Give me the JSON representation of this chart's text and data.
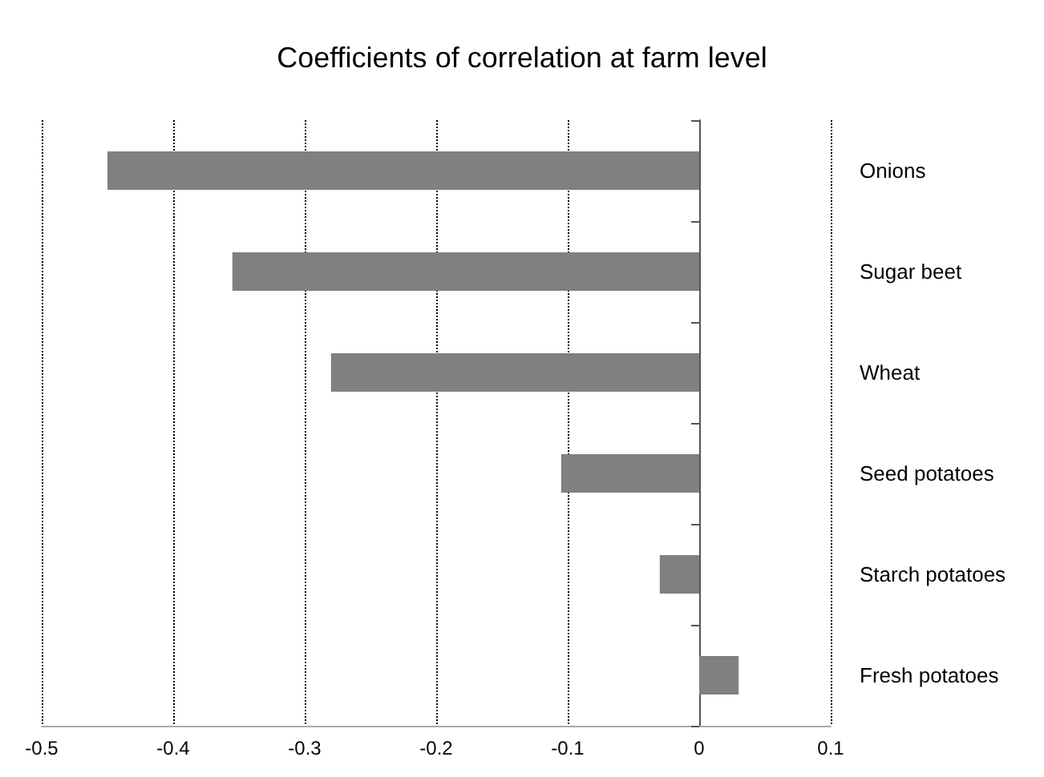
{
  "chart_data": {
    "type": "bar",
    "orientation": "horizontal",
    "title": "Coefficients of correlation at farm level",
    "categories": [
      "Onions",
      "Sugar beet",
      "Wheat",
      "Seed potatoes",
      "Starch potatoes",
      "Fresh potatoes"
    ],
    "values": [
      -0.45,
      -0.355,
      -0.28,
      -0.105,
      -0.03,
      0.03
    ],
    "color": "#808080",
    "xlim": [
      -0.5,
      0.1
    ],
    "xticks": [
      -0.5,
      -0.4,
      -0.3,
      -0.2,
      -0.1,
      0,
      0.1
    ],
    "grid": "x"
  }
}
